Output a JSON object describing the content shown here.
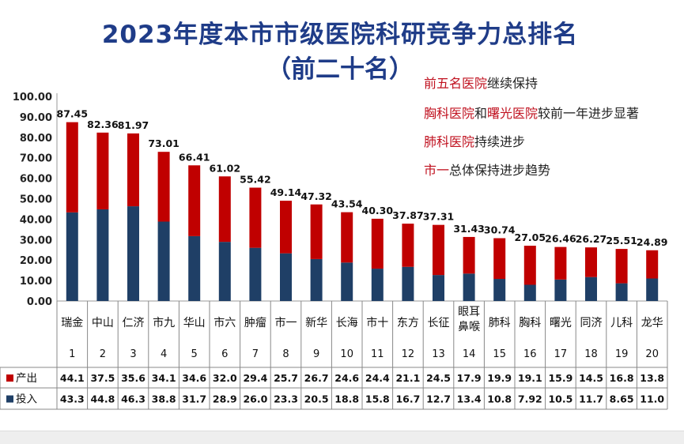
{
  "title": "2023年度本市市级医院科研竞争力总排名",
  "subtitle": "（前二十名）",
  "annotations": [
    {
      "parts": [
        {
          "text": "前五名医院",
          "red": true
        },
        {
          "text": "继续保持",
          "red": false
        }
      ]
    },
    {
      "parts": [
        {
          "text": "胸科医院",
          "red": true
        },
        {
          "text": "和",
          "red": false
        },
        {
          "text": "曙光医院",
          "red": true
        },
        {
          "text": "较前一年进步显著",
          "red": false
        }
      ]
    },
    {
      "parts": [
        {
          "text": "肺科医院",
          "red": true
        },
        {
          "text": "持续进步",
          "red": false
        }
      ]
    },
    {
      "parts": [
        {
          "text": "市一",
          "red": true
        },
        {
          "text": "总体保持进步趋势",
          "red": false
        }
      ]
    }
  ],
  "colors": {
    "output": "#c00000",
    "input": "#1f3f66",
    "title": "#1f3c88",
    "accent_text": "#c0111f"
  },
  "chart_data": {
    "type": "bar",
    "stacked": true,
    "ylim": [
      0,
      100
    ],
    "yticks": [
      "0.00",
      "10.00",
      "20.00",
      "30.00",
      "40.00",
      "50.00",
      "60.00",
      "70.00",
      "80.00",
      "90.00",
      "100.00"
    ],
    "ylabel": "",
    "categories": [
      "瑞金",
      "中山",
      "仁济",
      "市九",
      "华山",
      "市六",
      "肿瘤",
      "市一",
      "新华",
      "长海",
      "市十",
      "东方",
      "长征",
      "眼耳鼻喉",
      "肺科",
      "胸科",
      "曙光",
      "同济",
      "儿科",
      "龙华"
    ],
    "ranks": [
      "1",
      "2",
      "3",
      "4",
      "5",
      "6",
      "7",
      "8",
      "9",
      "10",
      "11",
      "12",
      "13",
      "14",
      "15",
      "16",
      "17",
      "18",
      "19",
      "20"
    ],
    "totals": [
      "87.45",
      "82.36",
      "81.97",
      "73.01",
      "66.41",
      "61.02",
      "55.42",
      "49.14",
      "47.32",
      "43.54",
      "40.30",
      "37.87",
      "37.31",
      "31.43",
      "30.74",
      "27.05",
      "26.46",
      "26.27",
      "25.51",
      "24.89"
    ],
    "series": [
      {
        "name": "产出",
        "color": "#c00000",
        "values": [
          44.1,
          37.5,
          35.6,
          34.1,
          34.6,
          32.0,
          29.4,
          25.7,
          26.7,
          24.6,
          24.4,
          21.1,
          24.5,
          17.9,
          19.9,
          19.1,
          15.9,
          14.5,
          16.8,
          13.8
        ],
        "labels": [
          "44.1",
          "37.5",
          "35.6",
          "34.1",
          "34.6",
          "32.0",
          "29.4",
          "25.7",
          "26.7",
          "24.6",
          "24.4",
          "21.1",
          "24.5",
          "17.9",
          "19.9",
          "19.1",
          "15.9",
          "14.5",
          "16.8",
          "13.8"
        ]
      },
      {
        "name": "投入",
        "color": "#1f3f66",
        "values": [
          43.3,
          44.8,
          46.3,
          38.8,
          31.7,
          28.9,
          26.0,
          23.3,
          20.5,
          18.8,
          15.8,
          16.7,
          12.7,
          13.4,
          10.8,
          7.92,
          10.5,
          11.7,
          8.65,
          11.0
        ],
        "labels": [
          "43.3",
          "44.8",
          "46.3",
          "38.8",
          "31.7",
          "28.9",
          "26.0",
          "23.3",
          "20.5",
          "18.8",
          "15.8",
          "16.7",
          "12.7",
          "13.4",
          "10.8",
          "7.92",
          "10.5",
          "11.7",
          "8.65",
          "11.0"
        ]
      }
    ]
  }
}
